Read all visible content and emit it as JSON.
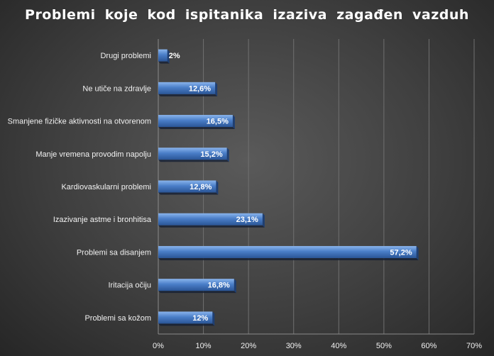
{
  "chart_data": {
    "type": "bar",
    "orientation": "horizontal",
    "title": "Problemi  koje  kod  ispitanika  izaziva  zagađen  vazduh",
    "categories": [
      "Drugi problemi",
      "Ne utiče na zdravlje",
      "Smanjene fizičke aktivnosti na otvorenom",
      "Manje vremena provodim napolju",
      "Kardiovaskularni problemi",
      "Izazivanje astme i bronhitisa",
      "Problemi sa disanjem",
      "Iritacija očiju",
      "Problemi sa kožom"
    ],
    "values": [
      2,
      12.6,
      16.5,
      15.2,
      12.8,
      23.1,
      57.2,
      16.8,
      12
    ],
    "data_labels": [
      "2%",
      "12,6%",
      "16,5%",
      "15,2%",
      "12,8%",
      "23,1%",
      "57,2%",
      "16,8%",
      "12%"
    ],
    "x_ticks": [
      "0%",
      "10%",
      "20%",
      "30%",
      "40%",
      "50%",
      "60%",
      "70%"
    ],
    "xlim": [
      0,
      70
    ],
    "xlabel": "",
    "ylabel": "",
    "grid": "vertical",
    "legend": "none",
    "colors": {
      "bar": "#4a7ec8",
      "bar_light": "#8ab4ec",
      "bar_dark": "#2a5596",
      "gridline": "#707070",
      "text": "#f2f2f2"
    }
  }
}
